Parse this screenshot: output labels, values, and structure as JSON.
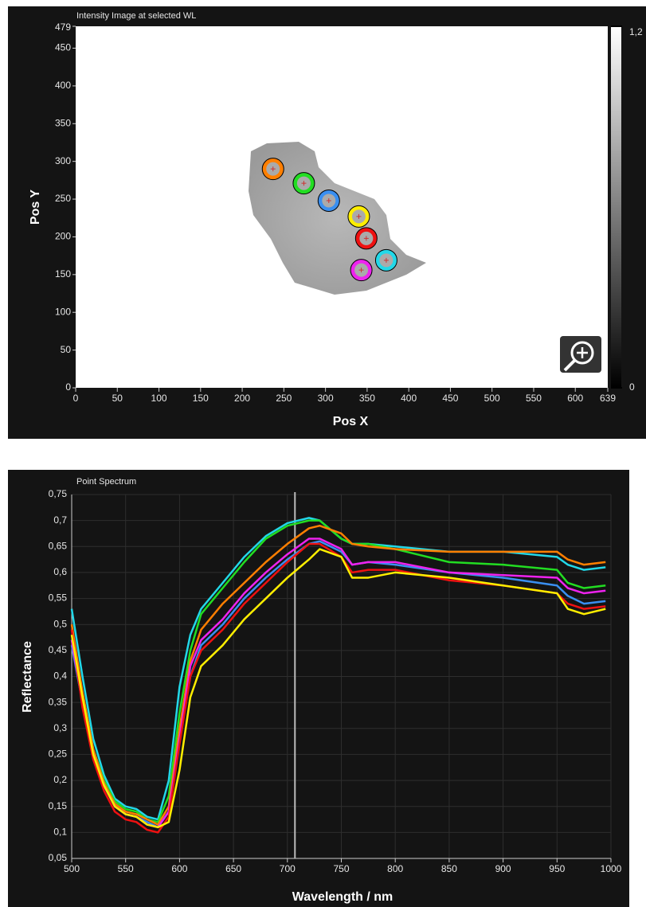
{
  "chart_data": [
    {
      "type": "scatter",
      "title": "Intensity Image at selected WL",
      "x_label": "Pos X",
      "y_label": "Pos Y",
      "x": [
        237,
        274,
        304,
        340,
        349,
        373,
        343
      ],
      "y": [
        290,
        271,
        248,
        227,
        198,
        169,
        156
      ],
      "colors": [
        "#ff7f00",
        "#22dd22",
        "#3a8ff0",
        "#ffee00",
        "#ee1111",
        "#22d8e8",
        "#ee22ee"
      ],
      "xlim": [
        0,
        639
      ],
      "ylim": [
        0,
        479
      ],
      "xticks": [
        0,
        50,
        100,
        150,
        200,
        250,
        300,
        350,
        400,
        450,
        500,
        550,
        600,
        639
      ],
      "yticks": [
        0,
        50,
        100,
        150,
        200,
        250,
        300,
        350,
        400,
        450,
        479
      ],
      "colorbar_lim": [
        0,
        1.2
      ],
      "colorbar_ticks": [
        0,
        {
          "value": 1.2,
          "label": "1,2"
        }
      ]
    },
    {
      "type": "line",
      "title": "Point Spectrum",
      "x_label": "Wavelength / nm",
      "y_label": "Reflectance",
      "x": [
        500,
        510,
        520,
        530,
        540,
        550,
        560,
        570,
        580,
        590,
        600,
        610,
        620,
        640,
        660,
        680,
        700,
        720,
        730,
        750,
        760,
        775,
        800,
        850,
        900,
        950,
        960,
        975,
        995
      ],
      "series": [
        {
          "color": "#22d8e8",
          "values": [
            0.53,
            0.4,
            0.28,
            0.21,
            0.165,
            0.15,
            0.145,
            0.13,
            0.125,
            0.2,
            0.38,
            0.48,
            0.53,
            0.58,
            0.63,
            0.67,
            0.695,
            0.705,
            0.7,
            0.665,
            0.655,
            0.655,
            0.65,
            0.64,
            0.64,
            0.63,
            0.615,
            0.605,
            0.61
          ]
        },
        {
          "color": "#22dd22",
          "values": [
            0.47,
            0.37,
            0.26,
            0.2,
            0.16,
            0.145,
            0.14,
            0.125,
            0.12,
            0.17,
            0.33,
            0.45,
            0.52,
            0.57,
            0.62,
            0.665,
            0.69,
            0.7,
            0.7,
            0.665,
            0.655,
            0.655,
            0.645,
            0.62,
            0.615,
            0.605,
            0.58,
            0.57,
            0.575
          ]
        },
        {
          "color": "#ff7f00",
          "values": [
            0.5,
            0.37,
            0.26,
            0.195,
            0.155,
            0.14,
            0.135,
            0.125,
            0.115,
            0.15,
            0.3,
            0.43,
            0.49,
            0.54,
            0.58,
            0.62,
            0.655,
            0.685,
            0.69,
            0.675,
            0.655,
            0.65,
            0.645,
            0.64,
            0.64,
            0.64,
            0.625,
            0.615,
            0.62
          ]
        },
        {
          "color": "#3a8ff0",
          "values": [
            0.46,
            0.35,
            0.25,
            0.19,
            0.15,
            0.135,
            0.13,
            0.12,
            0.11,
            0.14,
            0.28,
            0.4,
            0.46,
            0.5,
            0.55,
            0.59,
            0.625,
            0.655,
            0.66,
            0.64,
            0.615,
            0.62,
            0.615,
            0.6,
            0.59,
            0.575,
            0.555,
            0.54,
            0.545
          ]
        },
        {
          "color": "#ee22ee",
          "values": [
            0.47,
            0.35,
            0.25,
            0.19,
            0.15,
            0.135,
            0.13,
            0.115,
            0.11,
            0.14,
            0.28,
            0.42,
            0.47,
            0.51,
            0.56,
            0.6,
            0.635,
            0.665,
            0.665,
            0.645,
            0.615,
            0.62,
            0.62,
            0.6,
            0.595,
            0.59,
            0.57,
            0.56,
            0.565
          ]
        },
        {
          "color": "#ee1111",
          "values": [
            0.49,
            0.34,
            0.24,
            0.18,
            0.14,
            0.125,
            0.12,
            0.105,
            0.1,
            0.13,
            0.27,
            0.4,
            0.45,
            0.49,
            0.54,
            0.58,
            0.62,
            0.655,
            0.655,
            0.63,
            0.6,
            0.605,
            0.605,
            0.585,
            0.575,
            0.56,
            0.54,
            0.53,
            0.535
          ]
        },
        {
          "color": "#ffee00",
          "values": [
            0.48,
            0.36,
            0.25,
            0.19,
            0.15,
            0.135,
            0.13,
            0.115,
            0.11,
            0.12,
            0.22,
            0.36,
            0.42,
            0.46,
            0.51,
            0.55,
            0.59,
            0.625,
            0.645,
            0.63,
            0.59,
            0.59,
            0.6,
            0.59,
            0.575,
            0.56,
            0.53,
            0.52,
            0.53
          ]
        }
      ],
      "selected_wavelength": 707,
      "xlim": [
        500,
        1000
      ],
      "ylim": [
        0.05,
        0.75
      ],
      "xticks": [
        500,
        550,
        600,
        650,
        700,
        750,
        800,
        850,
        900,
        950,
        1000
      ],
      "yticks": [
        {
          "value": 0.05,
          "label": "0,05"
        },
        {
          "value": 0.1,
          "label": "0,1"
        },
        {
          "value": 0.15,
          "label": "0,15"
        },
        {
          "value": 0.2,
          "label": "0,2"
        },
        {
          "value": 0.25,
          "label": "0,25"
        },
        {
          "value": 0.3,
          "label": "0,3"
        },
        {
          "value": 0.35,
          "label": "0,35"
        },
        {
          "value": 0.4,
          "label": "0,4"
        },
        {
          "value": 0.45,
          "label": "0,45"
        },
        {
          "value": 0.5,
          "label": "0,5"
        },
        {
          "value": 0.55,
          "label": "0,55"
        },
        {
          "value": 0.6,
          "label": "0,6"
        },
        {
          "value": 0.65,
          "label": "0,65"
        },
        {
          "value": 0.7,
          "label": "0,7"
        },
        {
          "value": 0.75,
          "label": "0,75"
        }
      ],
      "grid": true
    }
  ]
}
